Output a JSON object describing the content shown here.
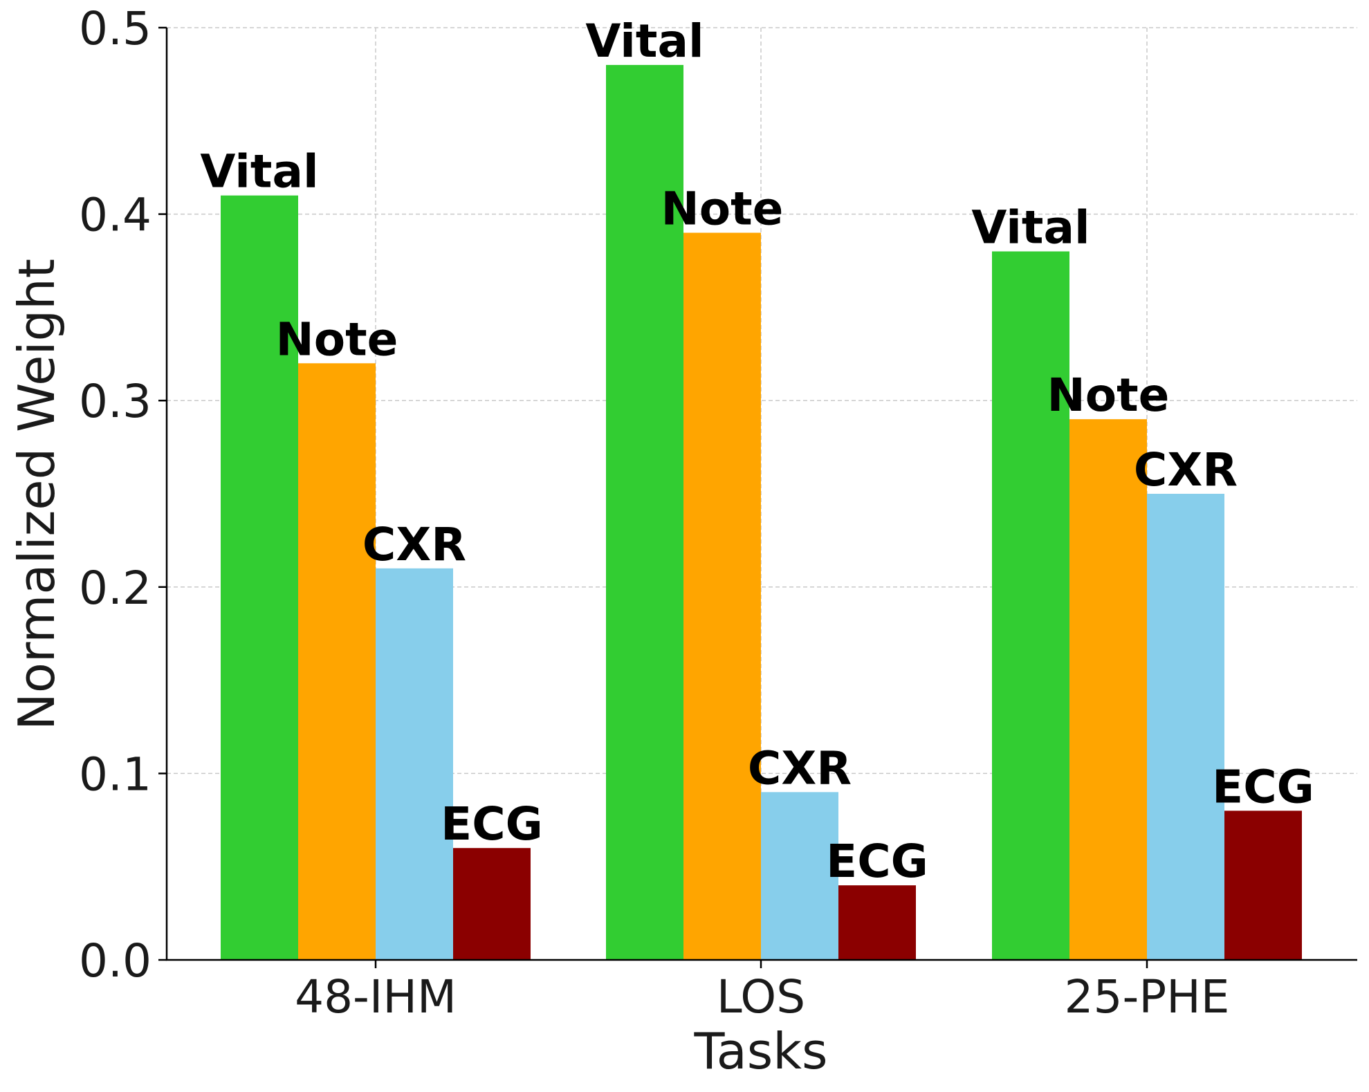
{
  "chart_data": {
    "type": "bar",
    "title": "",
    "xlabel": "Tasks",
    "ylabel": "Normalized Weight",
    "categories": [
      "48-IHM",
      "LOS",
      "25-PHE"
    ],
    "ylim": [
      0,
      0.5
    ],
    "yticks": [
      "0.0",
      "0.1",
      "0.2",
      "0.3",
      "0.4",
      "0.5"
    ],
    "grid": true,
    "series": [
      {
        "name": "Vital",
        "color": "#32cd32",
        "values": [
          0.41,
          0.48,
          0.38
        ]
      },
      {
        "name": "Note",
        "color": "#ffa500",
        "values": [
          0.32,
          0.39,
          0.29
        ]
      },
      {
        "name": "CXR",
        "color": "#87ceeb",
        "values": [
          0.21,
          0.09,
          0.25
        ]
      },
      {
        "name": "ECG",
        "color": "#8b0000",
        "values": [
          0.06,
          0.04,
          0.08
        ]
      }
    ]
  }
}
